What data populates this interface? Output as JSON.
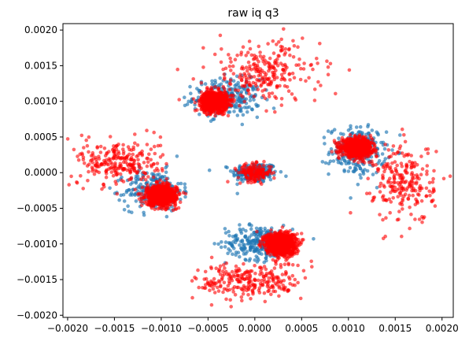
{
  "chart_data": {
    "type": "scatter",
    "title": "raw iq q3",
    "xlabel": "",
    "ylabel": "",
    "xlim": [
      -0.00205,
      0.00212
    ],
    "ylim": [
      -0.00203,
      0.00209
    ],
    "xticks": [
      -0.002,
      -0.0015,
      -0.001,
      -0.0005,
      0.0,
      0.0005,
      0.001,
      0.0015,
      0.002
    ],
    "xtick_labels": [
      "−0.0020",
      "−0.0015",
      "−0.0010",
      "−0.0005",
      "0.0000",
      "0.0005",
      "0.0010",
      "0.0015",
      "0.0020"
    ],
    "yticks": [
      -0.002,
      -0.0015,
      -0.001,
      -0.0005,
      0.0,
      0.0005,
      0.001,
      0.0015,
      0.002
    ],
    "ytick_labels": [
      "−0.0020",
      "−0.0015",
      "−0.0010",
      "−0.0005",
      "0.0000",
      "0.0005",
      "0.0010",
      "0.0015",
      "0.0020"
    ],
    "grid": false,
    "legend": false,
    "series": [
      {
        "color": "#1f77b4",
        "alpha": 0.65,
        "clusters": [
          {
            "center": [
              0.0,
              0.0
            ],
            "std": [
              0.00012,
              7e-05
            ],
            "n": 220
          },
          {
            "center": [
              -0.0003,
              0.00105
            ],
            "std": [
              0.00018,
              0.00013
            ],
            "n": 260
          },
          {
            "center": [
              0.0011,
              0.0003
            ],
            "std": [
              0.00015,
              0.00017
            ],
            "n": 260
          },
          {
            "center": [
              -0.00108,
              -0.00025
            ],
            "std": [
              0.00015,
              0.00014
            ],
            "n": 260
          },
          {
            "center": [
              5e-05,
              -0.00098
            ],
            "std": [
              0.00018,
              0.00012
            ],
            "n": 260
          }
        ]
      },
      {
        "color": "#ff0000",
        "alpha": 0.6,
        "clusters": [
          {
            "center": [
              0.0,
              0.0
            ],
            "std": [
              9e-05,
              6e-05
            ],
            "n": 160
          },
          {
            "center": [
              -0.00043,
              0.001
            ],
            "std": [
              7e-05,
              7e-05
            ],
            "n": 900
          },
          {
            "center": [
              0.0001,
              0.0014
            ],
            "std": [
              0.0003,
              0.00022
            ],
            "n": 260
          },
          {
            "center": [
              0.00109,
              0.00035
            ],
            "std": [
              8e-05,
              6e-05
            ],
            "n": 900
          },
          {
            "center": [
              0.0016,
              -0.00015
            ],
            "std": [
              0.00016,
              0.00028
            ],
            "n": 240
          },
          {
            "center": [
              -0.001,
              -0.00032
            ],
            "std": [
              8e-05,
              7e-05
            ],
            "n": 900
          },
          {
            "center": [
              -0.00145,
              0.00015
            ],
            "std": [
              0.00022,
              0.00016
            ],
            "n": 260
          },
          {
            "center": [
              0.00028,
              -0.001
            ],
            "std": [
              8e-05,
              8e-05
            ],
            "n": 900
          },
          {
            "center": [
              -5e-05,
              -0.00152
            ],
            "std": [
              0.00028,
              0.00013
            ],
            "n": 260
          }
        ]
      }
    ]
  }
}
